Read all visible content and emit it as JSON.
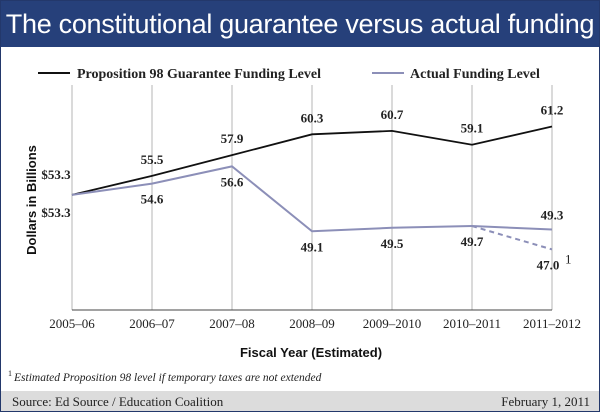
{
  "title": "The constitutional guarantee versus actual funding",
  "legend": {
    "guarantee": "Proposition 98 Guarantee Funding Level",
    "actual": "Actual Funding Level"
  },
  "colors": {
    "title_bg": "#26407a",
    "guarantee_line": "#111111",
    "actual_line": "#8c8fb8",
    "gridline": "#b5b5b5",
    "footer_bg": "#dcdcdc"
  },
  "footnote": {
    "marker": "1",
    "text": "Estimated Proposition 98 level if temporary taxes are not extended"
  },
  "footer": {
    "source": "Source: Ed Source / Education Coalition",
    "date": "February 1, 2011"
  },
  "chart_data": {
    "type": "line",
    "xlabel": "Fiscal Year (Estimated)",
    "ylabel": "Dollars in Billions",
    "categories": [
      "2005–06",
      "2006–07",
      "2007–08",
      "2008–09",
      "2009–2010",
      "2010–2011",
      "2011–2012"
    ],
    "ylim": [
      40,
      66
    ],
    "grid": "vertical",
    "legend_position": "top",
    "series": [
      {
        "name": "Proposition 98 Guarantee Funding Level",
        "values": [
          53.3,
          55.5,
          57.9,
          60.3,
          60.7,
          59.1,
          61.2
        ],
        "labels": [
          "$53.3",
          "55.5",
          "57.9",
          "60.3",
          "60.7",
          "59.1",
          "61.2"
        ]
      },
      {
        "name": "Actual Funding Level",
        "values": [
          53.3,
          54.6,
          56.6,
          49.1,
          49.5,
          49.7,
          49.3
        ],
        "labels": [
          "$53.3",
          "54.6",
          "56.6",
          "49.1",
          "49.5",
          "49.7",
          "49.3"
        ]
      }
    ],
    "annotation": {
      "label": "47.0",
      "marker": "1",
      "value": 47.0,
      "category": "2011–2012",
      "note": "dashed"
    }
  }
}
